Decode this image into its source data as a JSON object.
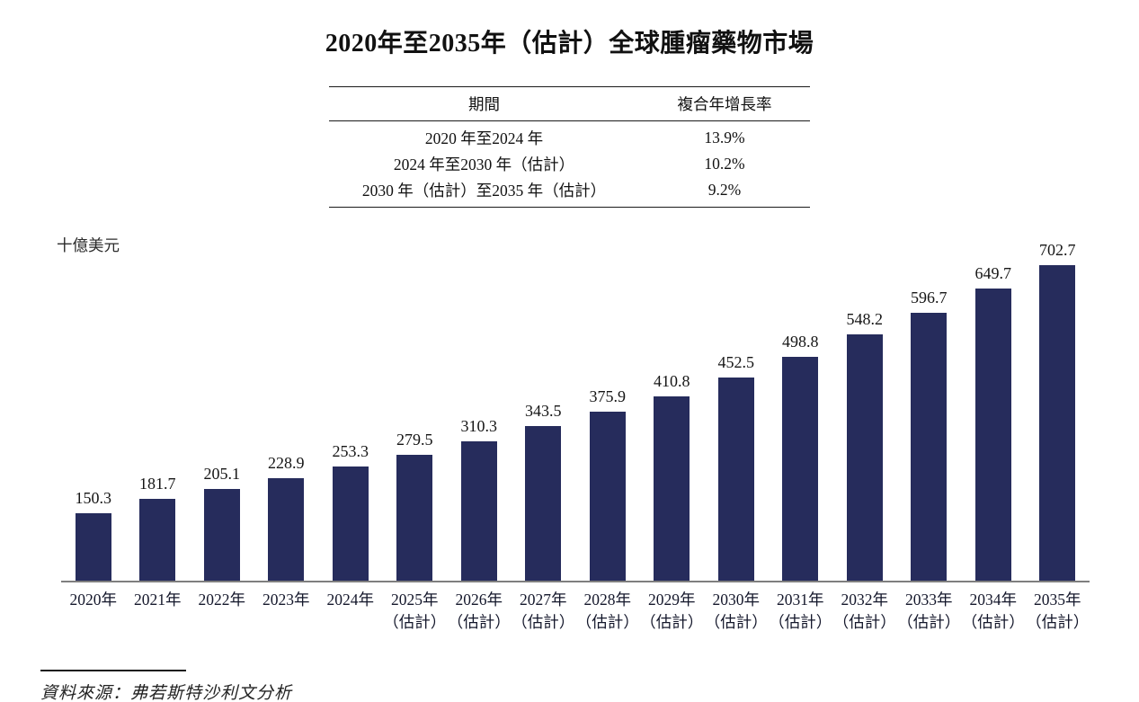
{
  "title": "2020年至2035年（估計）全球腫瘤藥物市場",
  "table": {
    "headers": [
      "期間",
      "複合年增長率"
    ],
    "rows": [
      {
        "period": "2020 年至2024 年",
        "cagr": "13.9%"
      },
      {
        "period": "2024 年至2030 年（估計）",
        "cagr": "10.2%"
      },
      {
        "period": "2030 年（估計）至2035 年（估計）",
        "cagr": "9.2%"
      }
    ]
  },
  "chart_data": {
    "type": "bar",
    "title": "2020年至2035年（估計）全球腫瘤藥物市場",
    "ylabel": "十億美元",
    "xlabel": "",
    "categories": [
      "2020年",
      "2021年",
      "2022年",
      "2023年",
      "2024年",
      "2025年（估計）",
      "2026年（估計）",
      "2027年（估計）",
      "2028年（估計）",
      "2029年（估計）",
      "2030年（估計）",
      "2031年（估計）",
      "2032年（估計）",
      "2033年（估計）",
      "2034年（估計）",
      "2035年（估計）"
    ],
    "values": [
      150.3,
      181.7,
      205.1,
      228.9,
      253.3,
      279.5,
      310.3,
      343.5,
      375.9,
      410.8,
      452.5,
      498.8,
      548.2,
      596.7,
      649.7,
      702.7
    ],
    "value_labels": [
      "150.3",
      "181.7",
      "205.1",
      "228.9",
      "253.3",
      "279.5",
      "310.3",
      "343.5",
      "375.9",
      "410.8",
      "452.5",
      "498.8",
      "548.2",
      "596.7",
      "649.7",
      "702.7"
    ],
    "bar_color": "#262c5c",
    "axis_line_color": "#7f7f7f",
    "ylim": [
      0,
      780
    ],
    "grid": false,
    "legend": false
  },
  "source": "資料來源：弗若斯特沙利文分析"
}
